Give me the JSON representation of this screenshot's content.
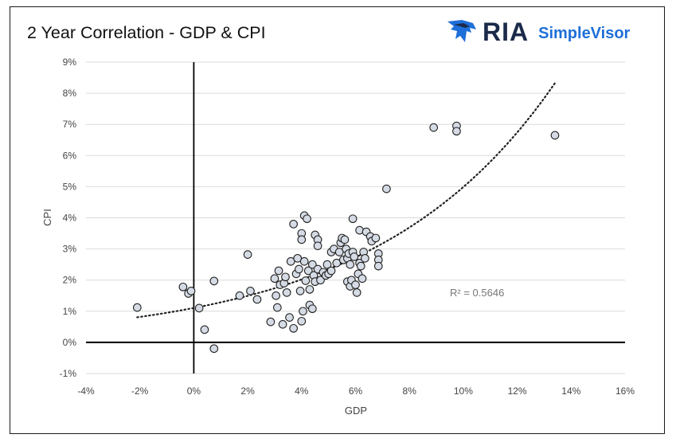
{
  "chart_data": {
    "type": "scatter",
    "title": "2 Year Correlation - GDP & CPI",
    "xlabel": "GDP",
    "ylabel": "CPI",
    "xlim": [
      -4,
      16
    ],
    "ylim": [
      -1,
      9
    ],
    "x_ticks": [
      "-4%",
      "-2%",
      "0%",
      "2%",
      "4%",
      "6%",
      "8%",
      "10%",
      "12%",
      "14%",
      "16%"
    ],
    "y_ticks": [
      "-1%",
      "0%",
      "1%",
      "2%",
      "3%",
      "4%",
      "5%",
      "6%",
      "7%",
      "8%",
      "9%"
    ],
    "grid": true,
    "trendline": {
      "type": "exponential",
      "style": "dotted",
      "x_range": [
        -2.1,
        13.4
      ],
      "label": "R² = 0.5646"
    },
    "points": [
      {
        "x": -2.1,
        "y": 1.12
      },
      {
        "x": -0.4,
        "y": 1.78
      },
      {
        "x": -0.2,
        "y": 1.57
      },
      {
        "x": -0.1,
        "y": 1.65
      },
      {
        "x": 0.2,
        "y": 1.1
      },
      {
        "x": 0.4,
        "y": 0.41
      },
      {
        "x": 0.75,
        "y": -0.2
      },
      {
        "x": 0.75,
        "y": 1.97
      },
      {
        "x": 1.7,
        "y": 1.5
      },
      {
        "x": 2.0,
        "y": 2.82
      },
      {
        "x": 2.1,
        "y": 1.65
      },
      {
        "x": 2.35,
        "y": 1.38
      },
      {
        "x": 2.85,
        "y": 0.66
      },
      {
        "x": 3.0,
        "y": 2.05
      },
      {
        "x": 3.05,
        "y": 1.5
      },
      {
        "x": 3.1,
        "y": 1.12
      },
      {
        "x": 3.15,
        "y": 2.3
      },
      {
        "x": 3.2,
        "y": 1.85
      },
      {
        "x": 3.3,
        "y": 0.58
      },
      {
        "x": 3.35,
        "y": 1.9
      },
      {
        "x": 3.4,
        "y": 2.1
      },
      {
        "x": 3.45,
        "y": 1.6
      },
      {
        "x": 3.55,
        "y": 0.8
      },
      {
        "x": 3.6,
        "y": 2.6
      },
      {
        "x": 3.7,
        "y": 3.8
      },
      {
        "x": 3.7,
        "y": 0.45
      },
      {
        "x": 3.8,
        "y": 2.2
      },
      {
        "x": 3.85,
        "y": 2.7
      },
      {
        "x": 3.9,
        "y": 2.35
      },
      {
        "x": 3.95,
        "y": 1.65
      },
      {
        "x": 4.0,
        "y": 3.5
      },
      {
        "x": 4.0,
        "y": 3.3
      },
      {
        "x": 4.0,
        "y": 0.68
      },
      {
        "x": 4.05,
        "y": 1.0
      },
      {
        "x": 4.1,
        "y": 4.07
      },
      {
        "x": 4.1,
        "y": 2.6
      },
      {
        "x": 4.15,
        "y": 1.98
      },
      {
        "x": 4.2,
        "y": 3.97
      },
      {
        "x": 4.25,
        "y": 2.3
      },
      {
        "x": 4.3,
        "y": 1.7
      },
      {
        "x": 4.3,
        "y": 1.2
      },
      {
        "x": 4.4,
        "y": 1.08
      },
      {
        "x": 4.4,
        "y": 2.5
      },
      {
        "x": 4.45,
        "y": 2.15
      },
      {
        "x": 4.5,
        "y": 3.45
      },
      {
        "x": 4.5,
        "y": 1.95
      },
      {
        "x": 4.6,
        "y": 3.3
      },
      {
        "x": 4.6,
        "y": 3.1
      },
      {
        "x": 4.6,
        "y": 2.35
      },
      {
        "x": 4.7,
        "y": 2.0
      },
      {
        "x": 4.8,
        "y": 2.25
      },
      {
        "x": 4.9,
        "y": 2.15
      },
      {
        "x": 4.95,
        "y": 2.5
      },
      {
        "x": 5.0,
        "y": 2.2
      },
      {
        "x": 5.1,
        "y": 2.9
      },
      {
        "x": 5.1,
        "y": 2.3
      },
      {
        "x": 5.2,
        "y": 3.0
      },
      {
        "x": 5.3,
        "y": 2.55
      },
      {
        "x": 5.4,
        "y": 2.9
      },
      {
        "x": 5.45,
        "y": 3.2
      },
      {
        "x": 5.5,
        "y": 3.35
      },
      {
        "x": 5.55,
        "y": 2.65
      },
      {
        "x": 5.6,
        "y": 3.3
      },
      {
        "x": 5.65,
        "y": 3.0
      },
      {
        "x": 5.7,
        "y": 2.7
      },
      {
        "x": 5.7,
        "y": 1.95
      },
      {
        "x": 5.75,
        "y": 2.85
      },
      {
        "x": 5.8,
        "y": 2.5
      },
      {
        "x": 5.8,
        "y": 1.8
      },
      {
        "x": 5.85,
        "y": 2.0
      },
      {
        "x": 5.9,
        "y": 3.97
      },
      {
        "x": 5.9,
        "y": 2.9
      },
      {
        "x": 5.95,
        "y": 2.75
      },
      {
        "x": 6.0,
        "y": 1.85
      },
      {
        "x": 6.05,
        "y": 1.6
      },
      {
        "x": 6.1,
        "y": 2.2
      },
      {
        "x": 6.15,
        "y": 3.6
      },
      {
        "x": 6.15,
        "y": 2.55
      },
      {
        "x": 6.2,
        "y": 2.45
      },
      {
        "x": 6.25,
        "y": 2.05
      },
      {
        "x": 6.3,
        "y": 2.9
      },
      {
        "x": 6.35,
        "y": 2.7
      },
      {
        "x": 6.4,
        "y": 3.55
      },
      {
        "x": 6.55,
        "y": 3.4
      },
      {
        "x": 6.6,
        "y": 3.25
      },
      {
        "x": 6.75,
        "y": 3.35
      },
      {
        "x": 6.85,
        "y": 2.85
      },
      {
        "x": 6.85,
        "y": 2.65
      },
      {
        "x": 6.85,
        "y": 2.45
      },
      {
        "x": 7.15,
        "y": 4.93
      },
      {
        "x": 8.9,
        "y": 6.9
      },
      {
        "x": 9.75,
        "y": 6.95
      },
      {
        "x": 9.75,
        "y": 6.78
      },
      {
        "x": 13.4,
        "y": 6.65
      }
    ]
  },
  "logo": {
    "brand": "RIA",
    "product": "SimpleVisor",
    "brand_color": "#1b2a4a",
    "product_color": "#1e6fd9"
  },
  "colors": {
    "point_fill": "#d5dbe5",
    "point_stroke": "#222222",
    "grid": "#d9d9d9",
    "axis": "#000000"
  }
}
